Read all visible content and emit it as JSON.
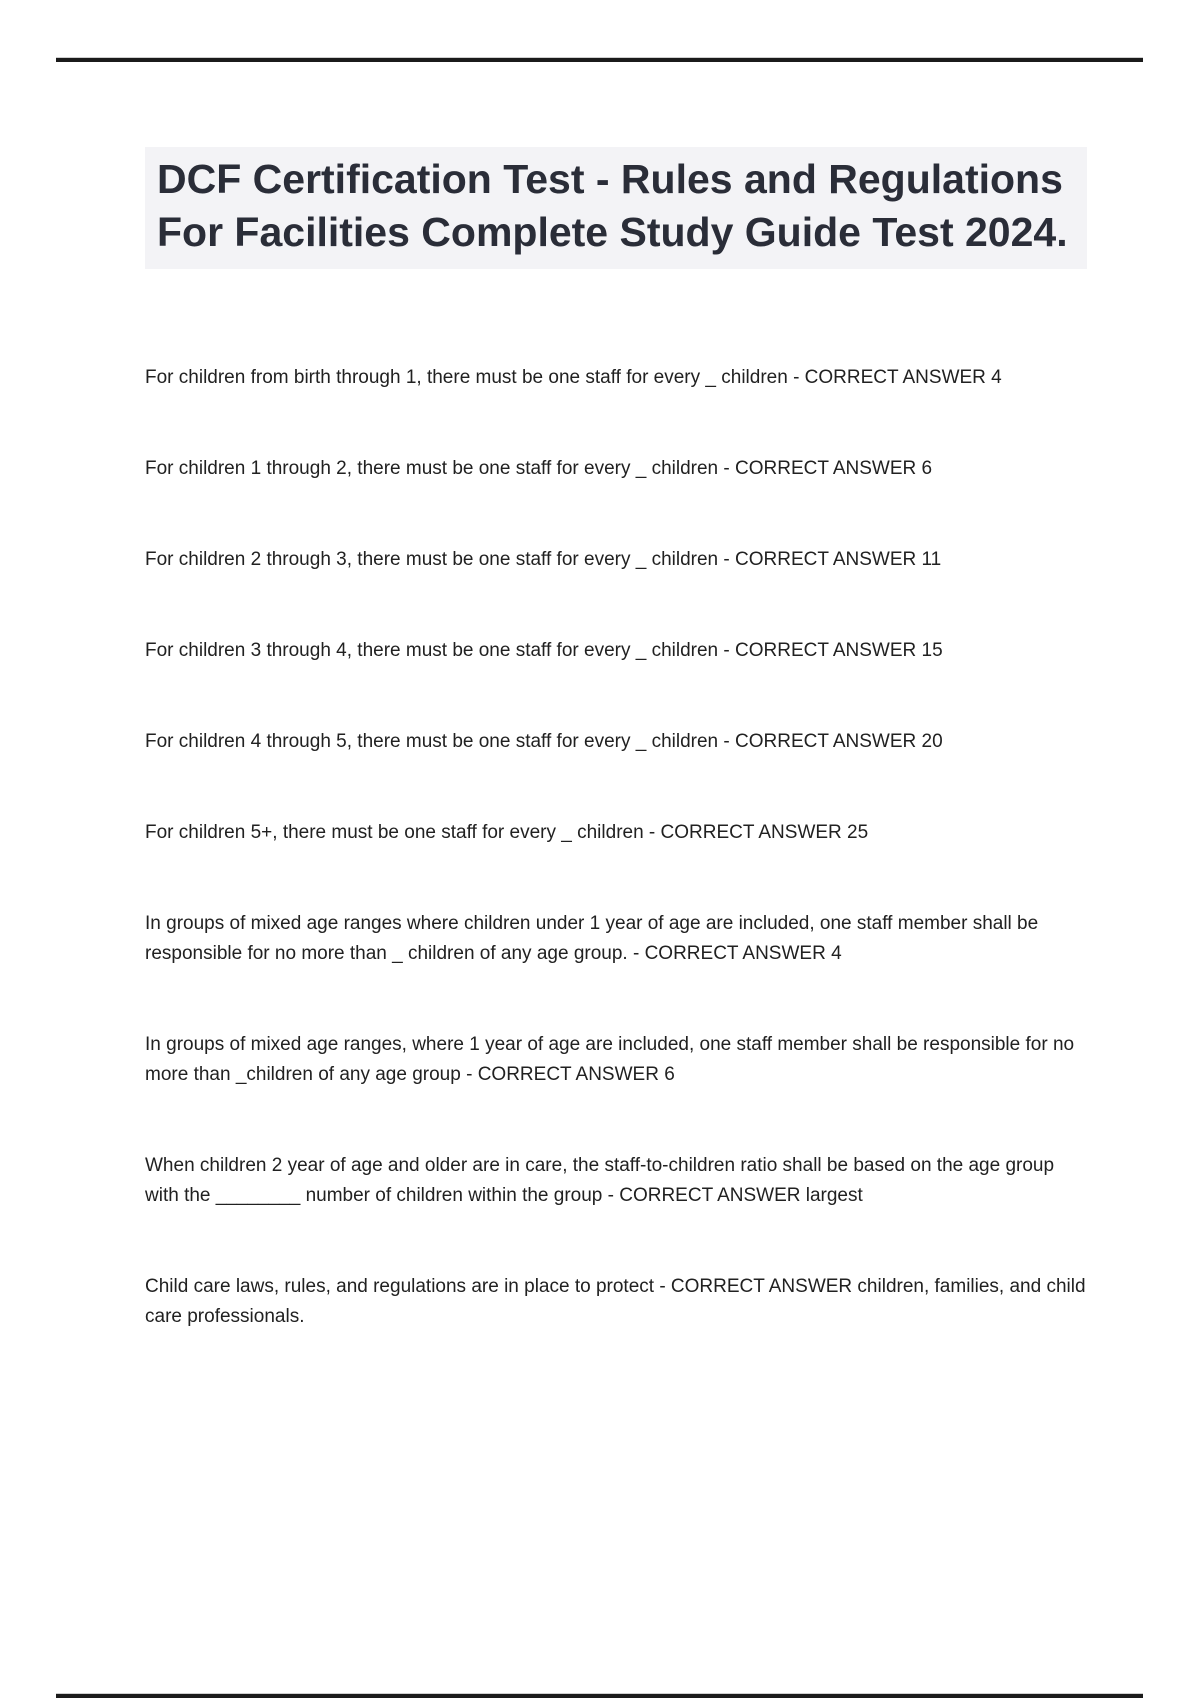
{
  "title": "DCF Certification Test - Rules and Regulations For Facilities Complete Study Guide Test 2024.",
  "qa_items": [
    "For children from birth through 1, there must be one staff for every _ children - CORRECT ANSWER 4",
    "For children 1 through 2, there must be one staff for every _ children - CORRECT ANSWER 6",
    "For children 2 through 3, there must be one staff for every _ children - CORRECT ANSWER 11",
    "For children 3 through 4, there must be one staff for every _ children - CORRECT ANSWER 15",
    "For children 4 through 5, there must be one staff for every _ children - CORRECT ANSWER 20",
    "For children 5+, there must be one staff for every _ children - CORRECT ANSWER 25",
    "In groups of mixed age ranges where children under 1 year of age are included, one staff member shall be responsible for no more than _ children of any age group. - CORRECT ANSWER 4",
    "In groups of mixed age ranges, where 1 year of age are included, one staff member shall be responsible for no more than _children of any age group - CORRECT ANSWER 6",
    "When children 2 year of age and older are in care, the staff-to-children ratio shall be based on the age group with the ________ number of children within the group - CORRECT ANSWER largest",
    "Child care laws, rules, and regulations are in place to protect - CORRECT ANSWER children, families, and child care professionals."
  ],
  "colors": {
    "title_text": "#2a2d38",
    "title_background": "#f3f3f6",
    "body_text": "#212121",
    "rule": "#1b1b1b"
  }
}
